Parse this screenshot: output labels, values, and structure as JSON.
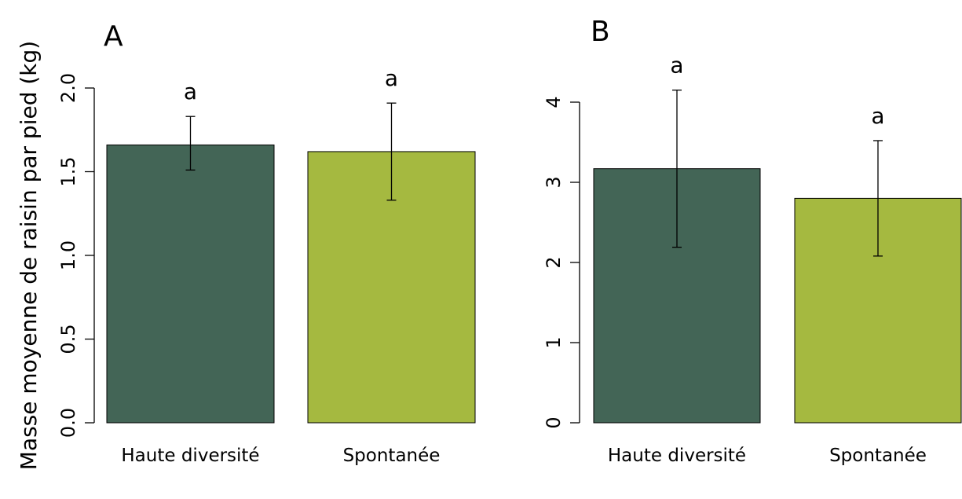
{
  "ylabel": "Masse moyenne de raisin par pied (kg)",
  "colors": {
    "dark_green": "#436556",
    "light_green": "#a5b940",
    "axis": "#000000"
  },
  "chart_data": [
    {
      "type": "bar",
      "panel": "A",
      "categories": [
        "Haute diversité",
        "Spontanée"
      ],
      "values": [
        1.66,
        1.62
      ],
      "error_low": [
        1.51,
        1.33
      ],
      "error_high": [
        1.83,
        1.91
      ],
      "letters": [
        "a",
        "a"
      ],
      "bar_colors": [
        "#436556",
        "#a5b940"
      ],
      "ylim": [
        0,
        2.0
      ],
      "yticks": [
        0.0,
        0.5,
        1.0,
        1.5,
        2.0
      ],
      "ytick_labels": [
        "0.0",
        "0.5",
        "1.0",
        "1.5",
        "2.0"
      ],
      "grid": false
    },
    {
      "type": "bar",
      "panel": "B",
      "categories": [
        "Haute diversité",
        "Spontanée"
      ],
      "values": [
        3.17,
        2.8
      ],
      "error_low": [
        2.19,
        2.08
      ],
      "error_high": [
        4.15,
        3.52
      ],
      "letters": [
        "a",
        "a"
      ],
      "bar_colors": [
        "#436556",
        "#a5b940"
      ],
      "ylim": [
        0,
        4
      ],
      "yticks": [
        0,
        1,
        2,
        3,
        4
      ],
      "ytick_labels": [
        "0",
        "1",
        "2",
        "3",
        "4"
      ],
      "grid": false
    }
  ]
}
